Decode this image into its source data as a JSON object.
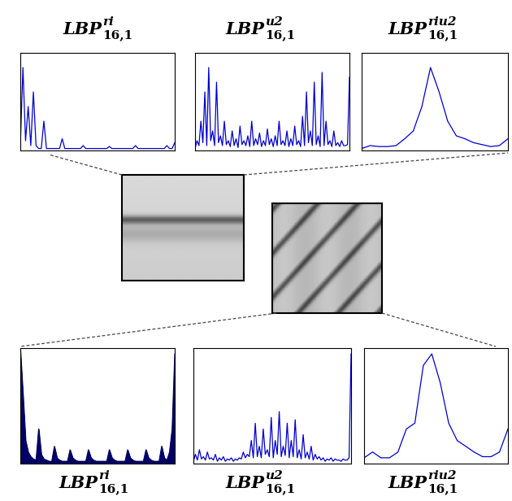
{
  "labels_top": [
    {
      "base": "LBP",
      "sup": "ri",
      "sub": "16,1"
    },
    {
      "base": "LBP",
      "sup": "u2",
      "sub": "16,1"
    },
    {
      "base": "LBP",
      "sup": "riu2",
      "sub": "16,1"
    }
  ],
  "labels_bottom": [
    {
      "base": "LBP",
      "sup": "ri",
      "sub": "16,1"
    },
    {
      "base": "LBP",
      "sup": "u2",
      "sub": "16,1"
    },
    {
      "base": "LBP",
      "sup": "riu2",
      "sub": "16,1"
    }
  ],
  "chart_data": [
    {
      "type": "line",
      "color": "#0000cc",
      "xlim": [
        0,
        59
      ],
      "ylim": [
        0,
        1
      ],
      "tick_labels": false,
      "values": [
        0.05,
        0.85,
        0.1,
        0.45,
        0.05,
        0.6,
        0.05,
        0.02,
        0.02,
        0.3,
        0.02,
        0.02,
        0.02,
        0.02,
        0.02,
        0.02,
        0.12,
        0.02,
        0.02,
        0.02,
        0.02,
        0.02,
        0.02,
        0.02,
        0.05,
        0.02,
        0.02,
        0.02,
        0.02,
        0.02,
        0.02,
        0.02,
        0.02,
        0.02,
        0.04,
        0.02,
        0.02,
        0.02,
        0.02,
        0.02,
        0.02,
        0.02,
        0.02,
        0.02,
        0.05,
        0.02,
        0.02,
        0.02,
        0.02,
        0.02,
        0.02,
        0.02,
        0.02,
        0.02,
        0.02,
        0.02,
        0.05,
        0.02,
        0.02,
        0.08
      ]
    },
    {
      "type": "line",
      "color": "#0000cc",
      "xlim": [
        0,
        79
      ],
      "ylim": [
        0,
        1
      ],
      "tick_labels": false,
      "values": [
        0.02,
        0.1,
        0.05,
        0.3,
        0.08,
        0.6,
        0.05,
        0.85,
        0.1,
        0.2,
        0.05,
        0.7,
        0.08,
        0.15,
        0.05,
        0.3,
        0.06,
        0.1,
        0.04,
        0.2,
        0.05,
        0.12,
        0.03,
        0.25,
        0.06,
        0.1,
        0.05,
        0.15,
        0.04,
        0.3,
        0.05,
        0.12,
        0.06,
        0.18,
        0.04,
        0.1,
        0.05,
        0.22,
        0.06,
        0.12,
        0.04,
        0.15,
        0.05,
        0.3,
        0.06,
        0.1,
        0.05,
        0.2,
        0.04,
        0.12,
        0.05,
        0.25,
        0.06,
        0.1,
        0.04,
        0.35,
        0.05,
        0.6,
        0.08,
        0.2,
        0.05,
        0.7,
        0.06,
        0.15,
        0.04,
        0.8,
        0.05,
        0.3,
        0.06,
        0.1,
        0.04,
        0.2,
        0.05,
        0.08,
        0.04,
        0.1,
        0.05,
        0.05,
        0.06,
        0.75
      ]
    },
    {
      "type": "line",
      "color": "#0000cc",
      "xlim": [
        0,
        17
      ],
      "ylim": [
        0,
        1
      ],
      "tick_labels": false,
      "values": [
        0.02,
        0.05,
        0.04,
        0.04,
        0.05,
        0.12,
        0.2,
        0.45,
        0.85,
        0.6,
        0.3,
        0.15,
        0.12,
        0.08,
        0.06,
        0.04,
        0.05,
        0.12
      ]
    },
    {
      "type": "area",
      "color": "#000066",
      "xlim": [
        0,
        59
      ],
      "ylim": [
        0,
        1
      ],
      "tick_labels": false,
      "values": [
        0.98,
        0.6,
        0.2,
        0.1,
        0.06,
        0.04,
        0.03,
        0.3,
        0.08,
        0.04,
        0.03,
        0.02,
        0.02,
        0.15,
        0.05,
        0.03,
        0.02,
        0.02,
        0.02,
        0.12,
        0.05,
        0.03,
        0.02,
        0.02,
        0.02,
        0.02,
        0.12,
        0.05,
        0.03,
        0.02,
        0.02,
        0.02,
        0.02,
        0.02,
        0.12,
        0.05,
        0.03,
        0.02,
        0.02,
        0.02,
        0.02,
        0.12,
        0.05,
        0.03,
        0.02,
        0.02,
        0.02,
        0.02,
        0.12,
        0.05,
        0.03,
        0.02,
        0.02,
        0.02,
        0.15,
        0.05,
        0.03,
        0.1,
        0.3,
        0.95
      ]
    },
    {
      "type": "line",
      "color": "#0000cc",
      "xlim": [
        0,
        79
      ],
      "ylim": [
        0,
        1
      ],
      "tick_labels": false,
      "values": [
        0.02,
        0.08,
        0.03,
        0.12,
        0.04,
        0.06,
        0.03,
        0.1,
        0.04,
        0.05,
        0.03,
        0.08,
        0.02,
        0.05,
        0.03,
        0.06,
        0.02,
        0.04,
        0.03,
        0.05,
        0.02,
        0.04,
        0.03,
        0.05,
        0.04,
        0.1,
        0.05,
        0.08,
        0.06,
        0.2,
        0.05,
        0.35,
        0.06,
        0.15,
        0.05,
        0.3,
        0.08,
        0.12,
        0.06,
        0.4,
        0.05,
        0.2,
        0.08,
        0.45,
        0.06,
        0.15,
        0.07,
        0.35,
        0.05,
        0.2,
        0.06,
        0.38,
        0.05,
        0.12,
        0.04,
        0.25,
        0.05,
        0.1,
        0.04,
        0.15,
        0.03,
        0.08,
        0.04,
        0.06,
        0.03,
        0.05,
        0.02,
        0.04,
        0.03,
        0.05,
        0.02,
        0.04,
        0.03,
        0.03,
        0.02,
        0.04,
        0.03,
        0.03,
        0.05,
        0.95
      ]
    },
    {
      "type": "line",
      "color": "#0000cc",
      "xlim": [
        0,
        17
      ],
      "ylim": [
        0,
        1
      ],
      "tick_labels": false,
      "values": [
        0.05,
        0.1,
        0.05,
        0.05,
        0.1,
        0.3,
        0.35,
        0.85,
        0.95,
        0.7,
        0.35,
        0.2,
        0.15,
        0.1,
        0.06,
        0.06,
        0.1,
        0.3
      ]
    }
  ]
}
